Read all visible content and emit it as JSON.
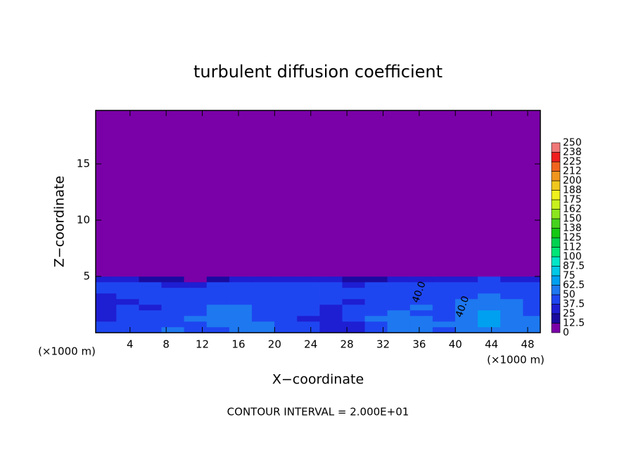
{
  "chart_data": {
    "type": "contour",
    "title": "turbulent diffusion coefficient",
    "xlabel": "X−coordinate",
    "ylabel": "Z−coordinate",
    "x_unit": "(×1000 m)",
    "x_unit_2": "(×1000 m)",
    "footnote": "CONTOUR INTERVAL = 2.000E+01",
    "xlim": [
      0.2,
      49.4
    ],
    "ylim": [
      0,
      19.75
    ],
    "xticks": [
      4,
      8,
      12,
      16,
      20,
      24,
      28,
      32,
      36,
      40,
      44,
      48
    ],
    "yticks": [
      5,
      10,
      15
    ],
    "x_edges": [
      0.2,
      2.5,
      5,
      7.5,
      10,
      12.5,
      15,
      17.5,
      20,
      22.5,
      25,
      27.5,
      30,
      32.5,
      35,
      37.5,
      40,
      42.5,
      45,
      47.5,
      49.4
    ],
    "z_edges": [
      0,
      0.5,
      1,
      1.5,
      2,
      2.5,
      3,
      3.5,
      4,
      4.5,
      5,
      5.5,
      19.75
    ],
    "z": [
      [
        45,
        40,
        45,
        50,
        48,
        45,
        52,
        55,
        48,
        40,
        35,
        30,
        45,
        50,
        55,
        48,
        52,
        60,
        55,
        50
      ],
      [
        40,
        38,
        42,
        48,
        45,
        50,
        55,
        50,
        45,
        38,
        30,
        35,
        48,
        52,
        58,
        50,
        55,
        65,
        60,
        52
      ],
      [
        35,
        40,
        45,
        42,
        50,
        55,
        60,
        48,
        42,
        35,
        28,
        40,
        50,
        55,
        52,
        48,
        58,
        70,
        62,
        50
      ],
      [
        30,
        42,
        40,
        45,
        48,
        58,
        55,
        45,
        40,
        38,
        30,
        42,
        45,
        50,
        48,
        45,
        55,
        68,
        58,
        48
      ],
      [
        28,
        38,
        35,
        42,
        45,
        52,
        50,
        42,
        45,
        40,
        35,
        38,
        42,
        45,
        50,
        40,
        52,
        60,
        55,
        45
      ],
      [
        30,
        35,
        40,
        38,
        42,
        48,
        45,
        45,
        48,
        42,
        38,
        35,
        40,
        48,
        45,
        42,
        50,
        55,
        52,
        45
      ],
      [
        35,
        40,
        42,
        40,
        38,
        45,
        42,
        48,
        45,
        40,
        42,
        38,
        45,
        45,
        42,
        45,
        48,
        50,
        48,
        42
      ],
      [
        40,
        42,
        45,
        42,
        40,
        42,
        45,
        45,
        42,
        45,
        45,
        40,
        45,
        42,
        40,
        42,
        45,
        45,
        42,
        40
      ],
      [
        42,
        40,
        38,
        35,
        32,
        38,
        40,
        42,
        40,
        42,
        40,
        35,
        38,
        40,
        38,
        40,
        42,
        40,
        40,
        38
      ],
      [
        30,
        28,
        20,
        15,
        12,
        20,
        30,
        35,
        30,
        35,
        30,
        20,
        18,
        25,
        30,
        28,
        35,
        38,
        35,
        32
      ],
      [
        0,
        0,
        0,
        0,
        0,
        0,
        5,
        10,
        5,
        8,
        5,
        0,
        0,
        0,
        0,
        0,
        5,
        10,
        8,
        5
      ],
      [
        0,
        0,
        0,
        0,
        0,
        0,
        0,
        0,
        0,
        0,
        0,
        0,
        0,
        0,
        0,
        0,
        0,
        0,
        0,
        0
      ]
    ],
    "annotations": [
      {
        "text": "40.0",
        "x": 36,
        "y": 3.6
      },
      {
        "text": "40.0",
        "x": 40.8,
        "y": 2.3
      }
    ],
    "colorbar": {
      "ticks": [
        0,
        12.5,
        25,
        37.5,
        50,
        62.5,
        75,
        87.5,
        100,
        {
          "value": 112.5,
          "label": "112"
        },
        125,
        {
          "value": 137.5,
          "label": "138"
        },
        150,
        {
          "value": 162.5,
          "label": "162"
        },
        175,
        {
          "value": 187.5,
          "label": "188"
        },
        200,
        {
          "value": 212.5,
          "label": "212"
        },
        225,
        {
          "value": 237.5,
          "label": "238"
        },
        250
      ],
      "colors": [
        "#7a00a8",
        "#1a0aa0",
        "#1e1ed2",
        "#1e46f0",
        "#1e78f0",
        "#00a0f0",
        "#00c8e6",
        "#00e6c8",
        "#00e678",
        "#00d250",
        "#14c814",
        "#46d21e",
        "#8ce61e",
        "#c8f01e",
        "#f0f01e",
        "#f0c81e",
        "#f0961e",
        "#f0641e",
        "#f01e1e",
        "#f07878"
      ]
    }
  }
}
